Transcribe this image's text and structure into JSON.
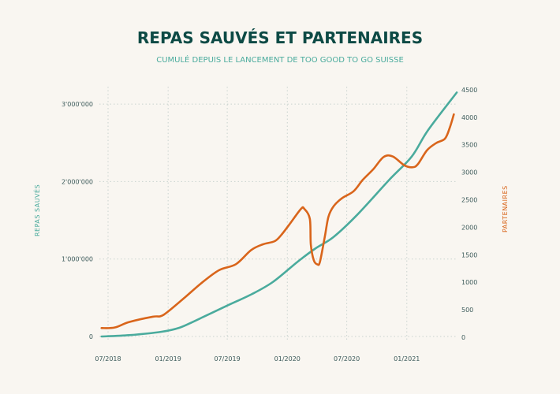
{
  "chart_data": {
    "type": "line",
    "title": "REPAS SAUVÉS ET PARTENAIRES",
    "subtitle": "CUMULÉ DEPUIS LE LANCEMENT DE TOO GOOD TO GO SUISSE",
    "ylabel_left": "REPAS  SAUVÉS",
    "ylabel_right": "PARTENAIRES",
    "grid": true,
    "x_ticks": [
      {
        "date": "2018-07-01",
        "label": "07/2018"
      },
      {
        "date": "2019-01-01",
        "label": "01/2019"
      },
      {
        "date": "2019-07-01",
        "label": "07/2019"
      },
      {
        "date": "2020-01-01",
        "label": "01/2020"
      },
      {
        "date": "2020-07-01",
        "label": "07/2020"
      },
      {
        "date": "2021-01-01",
        "label": "01/2021"
      }
    ],
    "y_left_ticks": [
      {
        "value": 0,
        "label": "0"
      },
      {
        "value": 1000000,
        "label": "1'000'000"
      },
      {
        "value": 2000000,
        "label": "2'000'000"
      },
      {
        "value": 3000000,
        "label": "3'000'000"
      }
    ],
    "y_right_ticks": [
      {
        "value": 0,
        "label": "0"
      },
      {
        "value": 500,
        "label": "500"
      },
      {
        "value": 1000,
        "label": "1000"
      },
      {
        "value": 1500,
        "label": "1500"
      },
      {
        "value": 2000,
        "label": "2000"
      },
      {
        "value": 2500,
        "label": "2500"
      },
      {
        "value": 3000,
        "label": "3000"
      },
      {
        "value": 3500,
        "label": "3500"
      },
      {
        "value": 4000,
        "label": "4000"
      },
      {
        "value": 4500,
        "label": "4500"
      }
    ],
    "ylim_left": [
      0,
      3000000
    ],
    "ylim_right": [
      0,
      4500
    ],
    "series": [
      {
        "name": "REPAS  SAUVÉS",
        "axis": "left",
        "color": "#4aab9d",
        "points": [
          [
            "2018-06-11",
            0
          ],
          [
            "2018-09-04",
            17000
          ],
          [
            "2018-12-12",
            61000
          ],
          [
            "2019-02-04",
            112000
          ],
          [
            "2019-03-22",
            197000
          ],
          [
            "2019-06-27",
            391000
          ],
          [
            "2019-09-15",
            548000
          ],
          [
            "2019-11-19",
            707000
          ],
          [
            "2020-02-01",
            963000
          ],
          [
            "2020-03-26",
            1133000
          ],
          [
            "2020-05-22",
            1286000
          ],
          [
            "2020-08-03",
            1575000
          ],
          [
            "2020-11-07",
            2017000
          ],
          [
            "2021-01-16",
            2323000
          ],
          [
            "2021-03-07",
            2663000
          ],
          [
            "2021-06-03",
            3150000
          ]
        ]
      },
      {
        "name": "PARTENAIRES",
        "axis": "right",
        "color": "#d9651b",
        "points": [
          [
            "2018-06-11",
            167
          ],
          [
            "2018-07-21",
            177
          ],
          [
            "2018-09-04",
            277
          ],
          [
            "2018-11-15",
            373
          ],
          [
            "2018-12-09",
            383
          ],
          [
            "2019-01-01",
            469
          ],
          [
            "2019-02-20",
            718
          ],
          [
            "2019-04-15",
            995
          ],
          [
            "2019-06-06",
            1220
          ],
          [
            "2019-07-28",
            1330
          ],
          [
            "2019-09-12",
            1584
          ],
          [
            "2019-10-18",
            1689
          ],
          [
            "2019-11-23",
            1746
          ],
          [
            "2019-12-13",
            1856
          ],
          [
            "2020-01-07",
            2048
          ],
          [
            "2020-02-12",
            2335
          ],
          [
            "2020-02-22",
            2335
          ],
          [
            "2020-03-10",
            2153
          ],
          [
            "2020-03-13",
            1689
          ],
          [
            "2020-03-22",
            1402
          ],
          [
            "2020-04-02",
            1325
          ],
          [
            "2020-04-10",
            1373
          ],
          [
            "2020-04-25",
            1833
          ],
          [
            "2020-05-06",
            2191
          ],
          [
            "2020-05-22",
            2383
          ],
          [
            "2020-06-16",
            2526
          ],
          [
            "2020-07-22",
            2655
          ],
          [
            "2020-08-19",
            2861
          ],
          [
            "2020-09-20",
            3053
          ],
          [
            "2020-10-22",
            3278
          ],
          [
            "2020-11-19",
            3287
          ],
          [
            "2020-12-25",
            3124
          ],
          [
            "2021-01-19",
            3091
          ],
          [
            "2021-02-04",
            3148
          ],
          [
            "2021-03-04",
            3401
          ],
          [
            "2021-04-01",
            3531
          ],
          [
            "2021-04-28",
            3612
          ],
          [
            "2021-05-13",
            3818
          ],
          [
            "2021-05-25",
            4053
          ]
        ]
      }
    ]
  }
}
